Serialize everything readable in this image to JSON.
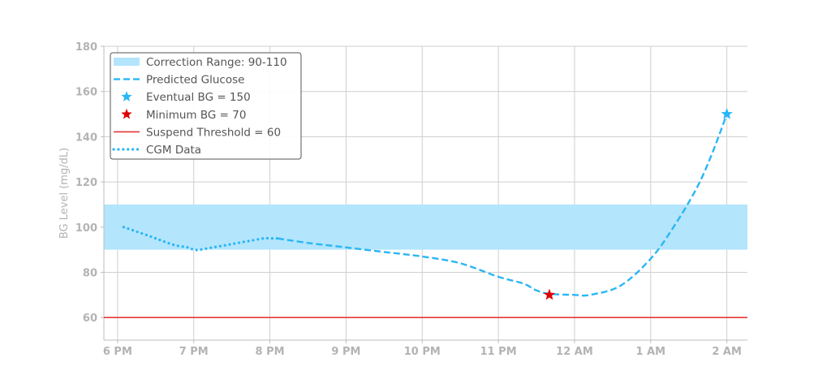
{
  "chart_data": {
    "type": "line",
    "ylabel": "BG Level (mg/dL)",
    "xlabel": "",
    "ylim": [
      50,
      180
    ],
    "xlim": [
      17.82,
      26.27
    ],
    "y_ticks": [
      60,
      80,
      100,
      120,
      140,
      160,
      180
    ],
    "x_ticks": [
      {
        "hour": 18,
        "label": "6 PM"
      },
      {
        "hour": 19,
        "label": "7 PM"
      },
      {
        "hour": 20,
        "label": "8 PM"
      },
      {
        "hour": 21,
        "label": "9 PM"
      },
      {
        "hour": 22,
        "label": "10 PM"
      },
      {
        "hour": 23,
        "label": "11 PM"
      },
      {
        "hour": 24,
        "label": "12 AM"
      },
      {
        "hour": 25,
        "label": "1 AM"
      },
      {
        "hour": 26,
        "label": "2 AM"
      }
    ],
    "grid": true,
    "legend_position": "top-left",
    "correction_range": {
      "name": "Correction Range: 90-110",
      "low": 90,
      "high": 110,
      "color": "#b3e5fc"
    },
    "suspend_threshold": {
      "name": "Suspend Threshold = 60",
      "value": 60,
      "color": "#e53935"
    },
    "cgm_data": {
      "name": "CGM Data",
      "color": "#29b6f6",
      "x": [
        18.08,
        18.25,
        18.42,
        18.58,
        18.75,
        18.92,
        19.0,
        19.08,
        19.25,
        19.42,
        19.58,
        19.75,
        19.92,
        20.0,
        20.1
      ],
      "y": [
        100,
        98,
        96,
        94,
        92,
        91,
        90,
        90,
        91,
        92,
        93,
        94,
        95,
        95,
        95
      ]
    },
    "predicted_glucose": {
      "name": "Predicted Glucose",
      "color": "#29b6f6",
      "x": [
        20.1,
        20.5,
        21.0,
        21.5,
        22.0,
        22.5,
        23.0,
        23.33,
        23.5,
        23.67,
        24.0,
        24.2,
        24.6,
        25.0,
        25.3,
        25.6,
        25.8,
        26.0
      ],
      "y": [
        95,
        93,
        91,
        89,
        87,
        84,
        78,
        75,
        72,
        70.5,
        70,
        70,
        74,
        86,
        100,
        117,
        132,
        150
      ]
    },
    "minimum_bg": {
      "name": "Minimum BG = 70",
      "x": 23.67,
      "y": 70,
      "color": "#e00000"
    },
    "eventual_bg": {
      "name": "Eventual BG = 150",
      "x": 26.0,
      "y": 150,
      "color": "#29b6f6"
    },
    "legend": [
      {
        "key": "range",
        "label": "Correction Range: 90-110"
      },
      {
        "key": "predicted",
        "label": "Predicted Glucose"
      },
      {
        "key": "eventual",
        "label": "Eventual BG = 150"
      },
      {
        "key": "minimum",
        "label": "Minimum BG = 70"
      },
      {
        "key": "suspend",
        "label": "Suspend Threshold = 60"
      },
      {
        "key": "cgm",
        "label": "CGM Data"
      }
    ]
  }
}
